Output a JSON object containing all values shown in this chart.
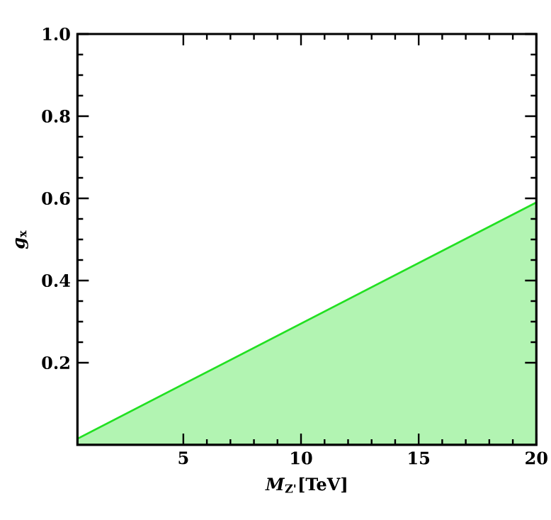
{
  "chart_data": {
    "type": "area",
    "xlabel": "*M*$_{Z'}$[TeV]",
    "ylabel": "*g*$_{x}$",
    "series": [
      {
        "color": "#22e022",
        "x": [
          0.5,
          20
        ],
        "values": [
          0.015,
          0.59
        ]
      }
    ],
    "xlim": [
      0.5,
      20
    ],
    "ylim": [
      0,
      1
    ],
    "xticks": [
      5,
      10,
      15,
      20
    ],
    "yticks": [
      0.2,
      0.4,
      0.6,
      0.8,
      {
        "value": 1,
        "label": "1.0"
      }
    ]
  }
}
